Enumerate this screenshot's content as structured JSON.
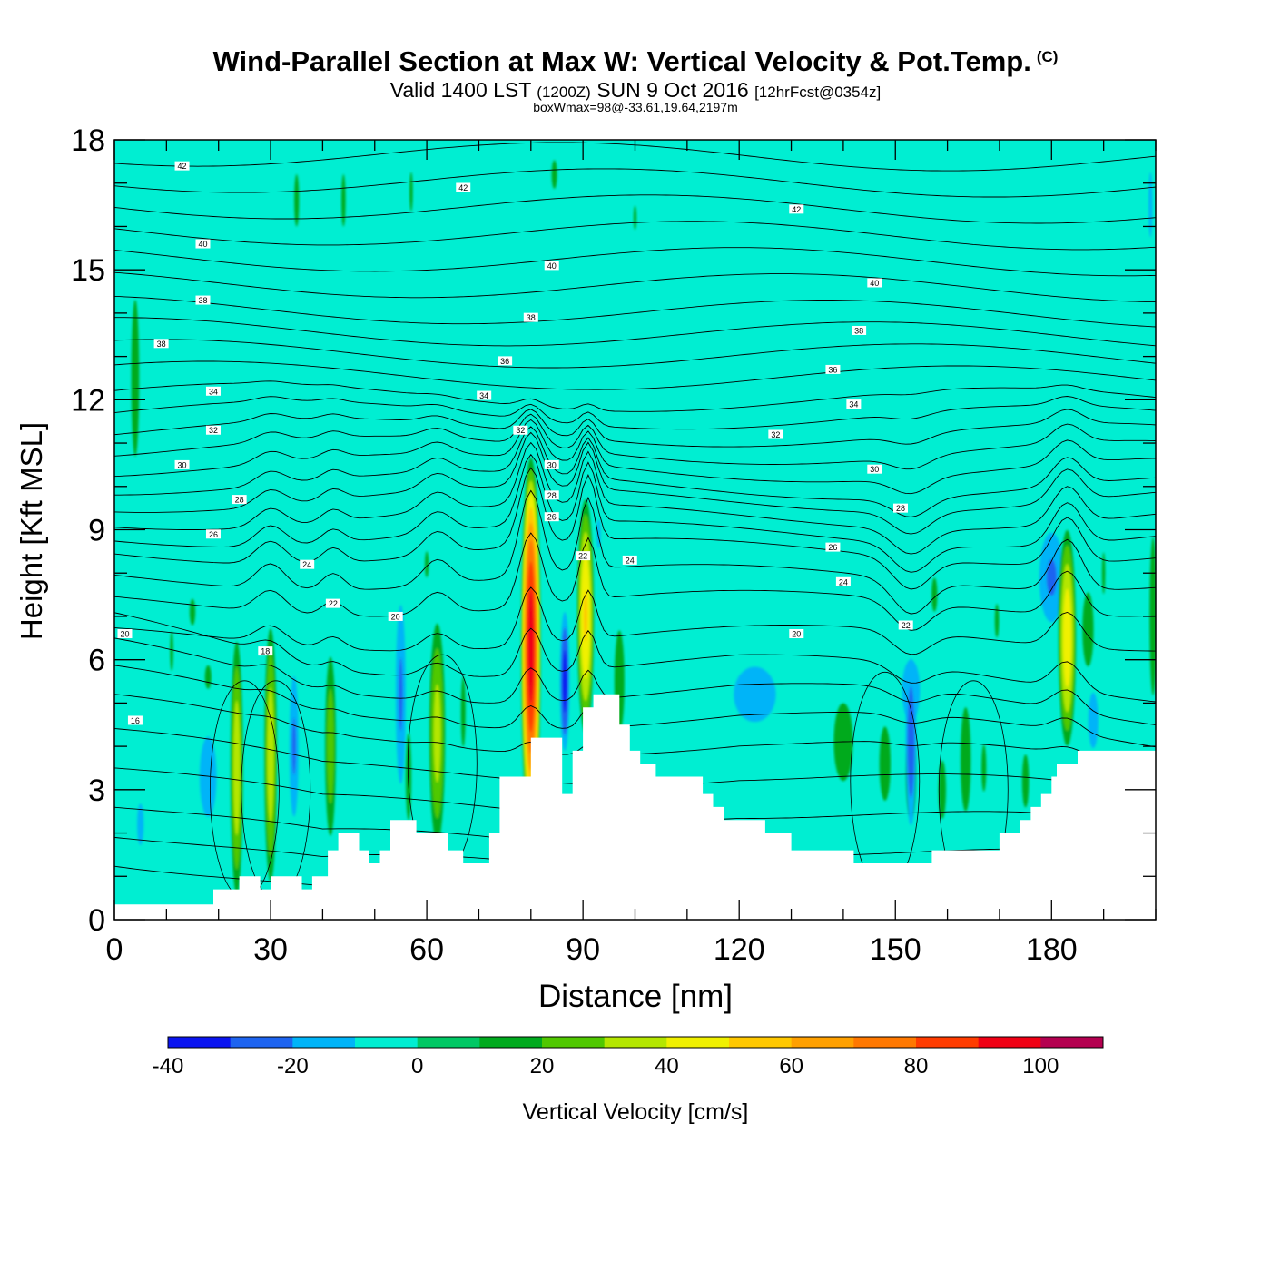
{
  "header": {
    "title": "Wind-Parallel Section at Max W: Vertical Velocity & Pot.Temp.",
    "copyright": "(C)",
    "valid_prefix": "Valid 1400 LST",
    "zulu": "(1200Z)",
    "valid_date": "SUN 9 Oct 2016",
    "forecast": "[12hrFcst@0354z]",
    "box_info": "boxWmax=98@-33.61,19.64,2197m"
  },
  "colors": {
    "background_field": "#00EED2",
    "terrain": "#FFFFFF",
    "contour": "#000000"
  },
  "chart_data": {
    "type": "heatmap",
    "title": "Wind-Parallel Section at Max W: Vertical Velocity & Pot.Temp.",
    "xlabel": "Distance [nm]",
    "ylabel": "Height [Kft MSL]",
    "xlim": [
      0,
      200
    ],
    "ylim": [
      0,
      18
    ],
    "xticks": [
      0,
      30,
      60,
      90,
      120,
      150,
      180
    ],
    "yticks": [
      0,
      3,
      6,
      9,
      12,
      15,
      18
    ],
    "colorbar": {
      "label": "Vertical Velocity [cm/s]",
      "bounds": [
        -40,
        -30,
        -20,
        -10,
        0,
        10,
        20,
        30,
        40,
        50,
        60,
        70,
        80,
        90,
        100,
        110
      ],
      "tick_values": [
        -40,
        -20,
        0,
        20,
        40,
        60,
        80,
        100
      ],
      "colors": [
        "#0A14F0",
        "#1E64F0",
        "#00B4F8",
        "#00EED2",
        "#00C864",
        "#00AA1E",
        "#50C800",
        "#B4E600",
        "#F0F000",
        "#FFC800",
        "#FFA000",
        "#FF7800",
        "#FF3C00",
        "#F00014",
        "#B40050"
      ]
    },
    "terrain_profile": [
      [
        0,
        0.35
      ],
      [
        19,
        0.35
      ],
      [
        19,
        0.7
      ],
      [
        24,
        0.7
      ],
      [
        24,
        1.0
      ],
      [
        28,
        1.0
      ],
      [
        28,
        0.7
      ],
      [
        30,
        0.7
      ],
      [
        30,
        1.0
      ],
      [
        36,
        1.0
      ],
      [
        36,
        0.7
      ],
      [
        38,
        0.7
      ],
      [
        38,
        1.0
      ],
      [
        41,
        1.0
      ],
      [
        41,
        1.6
      ],
      [
        43,
        1.6
      ],
      [
        43,
        2.0
      ],
      [
        47,
        2.0
      ],
      [
        47,
        1.6
      ],
      [
        49,
        1.6
      ],
      [
        49,
        1.3
      ],
      [
        51,
        1.3
      ],
      [
        51,
        1.6
      ],
      [
        53,
        1.6
      ],
      [
        53,
        2.3
      ],
      [
        58,
        2.3
      ],
      [
        58,
        2.0
      ],
      [
        64,
        2.0
      ],
      [
        64,
        1.6
      ],
      [
        67,
        1.6
      ],
      [
        67,
        1.3
      ],
      [
        72,
        1.3
      ],
      [
        72,
        2.0
      ],
      [
        74,
        2.0
      ],
      [
        74,
        3.3
      ],
      [
        80,
        3.3
      ],
      [
        80,
        4.2
      ],
      [
        86,
        4.2
      ],
      [
        86,
        2.9
      ],
      [
        88,
        2.9
      ],
      [
        88,
        3.9
      ],
      [
        90,
        3.9
      ],
      [
        90,
        4.9
      ],
      [
        92,
        4.9
      ],
      [
        92,
        5.2
      ],
      [
        97,
        5.2
      ],
      [
        97,
        4.5
      ],
      [
        99,
        4.5
      ],
      [
        99,
        3.9
      ],
      [
        101,
        3.9
      ],
      [
        101,
        3.6
      ],
      [
        104,
        3.6
      ],
      [
        104,
        3.3
      ],
      [
        113,
        3.3
      ],
      [
        113,
        2.9
      ],
      [
        115,
        2.9
      ],
      [
        115,
        2.6
      ],
      [
        117,
        2.6
      ],
      [
        117,
        2.3
      ],
      [
        125,
        2.3
      ],
      [
        125,
        2.0
      ],
      [
        130,
        2.0
      ],
      [
        130,
        1.6
      ],
      [
        142,
        1.6
      ],
      [
        142,
        1.3
      ],
      [
        157,
        1.3
      ],
      [
        157,
        1.6
      ],
      [
        170,
        1.6
      ],
      [
        170,
        2.0
      ],
      [
        174,
        2.0
      ],
      [
        174,
        2.3
      ],
      [
        176,
        2.3
      ],
      [
        176,
        2.6
      ],
      [
        178,
        2.6
      ],
      [
        178,
        2.9
      ],
      [
        180,
        2.9
      ],
      [
        180,
        3.3
      ],
      [
        181,
        3.3
      ],
      [
        181,
        3.6
      ],
      [
        185,
        3.6
      ],
      [
        185,
        3.9
      ],
      [
        200,
        3.9
      ]
    ],
    "blobs": [
      {
        "x": 80,
        "y": 6.3,
        "w": 2.0,
        "h": 4.6,
        "v": 98
      },
      {
        "x": 90.5,
        "y": 7.0,
        "w": 1.8,
        "h": 3.0,
        "v": 52
      },
      {
        "x": 183,
        "y": 6.5,
        "w": 1.9,
        "h": 2.8,
        "v": 48
      },
      {
        "x": 23.5,
        "y": 3.5,
        "w": 1.4,
        "h": 3.4,
        "v": 38
      },
      {
        "x": 30,
        "y": 3.8,
        "w": 1.4,
        "h": 3.4,
        "v": 38
      },
      {
        "x": 62,
        "y": 4.3,
        "w": 1.8,
        "h": 3.0,
        "v": 35
      },
      {
        "x": 41.5,
        "y": 4.0,
        "w": 1.3,
        "h": 2.6,
        "v": 27
      },
      {
        "x": 56.5,
        "y": 3.3,
        "w": 0.8,
        "h": 1.5,
        "v": 18
      },
      {
        "x": 67,
        "y": 4.8,
        "w": 0.9,
        "h": 1.7,
        "v": 13
      },
      {
        "x": 97,
        "y": 5.5,
        "w": 1.8,
        "h": 2.2,
        "v": 14
      },
      {
        "x": 106,
        "y": 4.6,
        "w": 3.0,
        "h": 1.6,
        "v": 10
      },
      {
        "x": 140,
        "y": 4.1,
        "w": 4.5,
        "h": 2.2,
        "v": 12
      },
      {
        "x": 148,
        "y": 3.6,
        "w": 2.0,
        "h": 1.6,
        "v": 14
      },
      {
        "x": 153,
        "y": 3.3,
        "w": 1.6,
        "h": 1.6,
        "v": 15
      },
      {
        "x": 159,
        "y": 3.0,
        "w": 1.5,
        "h": 1.4,
        "v": 13
      },
      {
        "x": 163.5,
        "y": 3.7,
        "w": 1.5,
        "h": 1.8,
        "v": 18
      },
      {
        "x": 167,
        "y": 3.5,
        "w": 1.5,
        "h": 1.8,
        "v": 11
      },
      {
        "x": 175,
        "y": 3.2,
        "w": 1.6,
        "h": 1.5,
        "v": 12
      },
      {
        "x": 187,
        "y": 6.7,
        "w": 2.0,
        "h": 1.6,
        "v": 14
      },
      {
        "x": 199.5,
        "y": 7.0,
        "w": 1.4,
        "h": 3.8,
        "v": 13
      },
      {
        "x": 4,
        "y": 12.5,
        "w": 2.5,
        "h": 6.0,
        "v": 11
      },
      {
        "x": 11,
        "y": 6.2,
        "w": 1.0,
        "h": 1.5,
        "v": 11
      },
      {
        "x": 35,
        "y": 16.6,
        "w": 1.5,
        "h": 2.0,
        "v": 11
      },
      {
        "x": 44,
        "y": 16.6,
        "w": 1.3,
        "h": 2.0,
        "v": 11
      },
      {
        "x": 57,
        "y": 16.8,
        "w": 1.0,
        "h": 1.5,
        "v": 11
      },
      {
        "x": 84.5,
        "y": 17.2,
        "w": 1.7,
        "h": 1.1,
        "v": 11
      },
      {
        "x": 60,
        "y": 8.2,
        "w": 1.2,
        "h": 1.0,
        "v": 11
      },
      {
        "x": 15,
        "y": 7.1,
        "w": 1.8,
        "h": 1.0,
        "v": 11
      },
      {
        "x": 18,
        "y": 5.6,
        "w": 2.0,
        "h": 0.9,
        "v": 11
      },
      {
        "x": 157.5,
        "y": 7.5,
        "w": 1.8,
        "h": 1.3,
        "v": 11
      },
      {
        "x": 169.5,
        "y": 6.9,
        "w": 1.3,
        "h": 1.3,
        "v": 11
      },
      {
        "x": 190,
        "y": 8.0,
        "w": 1.0,
        "h": 1.6,
        "v": 11
      },
      {
        "x": 100,
        "y": 16.2,
        "w": 0.9,
        "h": 0.9,
        "v": 11
      },
      {
        "x": 153,
        "y": 4.1,
        "w": 1.3,
        "h": 2.4,
        "v": -28
      },
      {
        "x": 86.5,
        "y": 5.5,
        "w": 1.1,
        "h": 1.9,
        "v": -35
      },
      {
        "x": 55,
        "y": 5.2,
        "w": 1.3,
        "h": 2.8,
        "v": -22
      },
      {
        "x": 34.5,
        "y": 4.0,
        "w": 1.2,
        "h": 2.2,
        "v": -22
      },
      {
        "x": 180,
        "y": 7.9,
        "w": 3.2,
        "h": 1.4,
        "v": -22
      },
      {
        "x": 18,
        "y": 3.3,
        "w": 2.8,
        "h": 1.6,
        "v": -15
      },
      {
        "x": 123,
        "y": 5.2,
        "w": 7.0,
        "h": 1.1,
        "v": -15
      },
      {
        "x": 153,
        "y": 5.3,
        "w": 3.0,
        "h": 1.2,
        "v": -15
      },
      {
        "x": 188,
        "y": 4.6,
        "w": 1.8,
        "h": 1.2,
        "v": -14
      },
      {
        "x": 199,
        "y": 16.5,
        "w": 0.7,
        "h": 1.4,
        "v": -14
      },
      {
        "x": 5,
        "y": 2.2,
        "w": 1.3,
        "h": 1.0,
        "v": -13
      },
      {
        "x": 93,
        "y": 8.9,
        "w": 0.8,
        "h": 0.7,
        "v": -13
      }
    ],
    "theta_contours": [
      {
        "level": 14,
        "base": 0.6
      },
      {
        "level": 15,
        "base": 1.2
      },
      {
        "level": 16,
        "base": 1.8
      },
      {
        "level": 17,
        "base": 2.6
      },
      {
        "level": 18,
        "base": 3.4
      },
      {
        "level": 19,
        "base": 4.1
      },
      {
        "level": 20,
        "base": 4.7
      },
      {
        "level": 21,
        "base": 5.3
      },
      {
        "level": 22,
        "base": 5.9
      },
      {
        "level": 23,
        "base": 6.5
      },
      {
        "level": 24,
        "base": 7.3
      },
      {
        "level": 25,
        "base": 7.9
      },
      {
        "level": 26,
        "base": 8.5
      },
      {
        "level": 27,
        "base": 8.9
      },
      {
        "level": 28,
        "base": 9.3
      },
      {
        "level": 29,
        "base": 9.7
      },
      {
        "level": 30,
        "base": 10.1
      },
      {
        "level": 31,
        "base": 10.5
      },
      {
        "level": 32,
        "base": 10.9
      },
      {
        "level": 33,
        "base": 11.3
      },
      {
        "level": 34,
        "base": 11.7
      },
      {
        "level": 35,
        "base": 12.1
      },
      {
        "level": 36,
        "base": 12.6
      },
      {
        "level": 37,
        "base": 13.1
      },
      {
        "level": 38,
        "base": 13.6
      },
      {
        "level": 39,
        "base": 14.1
      },
      {
        "level": 40,
        "base": 14.7
      },
      {
        "level": 41,
        "base": 15.3
      },
      {
        "level": 42,
        "base": 15.9
      },
      {
        "level": 43,
        "base": 16.5
      },
      {
        "level": 44,
        "base": 17.1
      },
      {
        "level": 45,
        "base": 17.7
      }
    ],
    "contour_labels": [
      {
        "text": "42",
        "x": 13,
        "y": 17.4
      },
      {
        "text": "42",
        "x": 67,
        "y": 16.9
      },
      {
        "text": "42",
        "x": 131,
        "y": 16.4
      },
      {
        "text": "40",
        "x": 17,
        "y": 15.6
      },
      {
        "text": "40",
        "x": 84,
        "y": 15.1
      },
      {
        "text": "40",
        "x": 146,
        "y": 14.7
      },
      {
        "text": "38",
        "x": 17,
        "y": 14.3
      },
      {
        "text": "38",
        "x": 80,
        "y": 13.9
      },
      {
        "text": "38",
        "x": 143,
        "y": 13.6
      },
      {
        "text": "38",
        "x": 9,
        "y": 13.3
      },
      {
        "text": "36",
        "x": 75,
        "y": 12.9
      },
      {
        "text": "36",
        "x": 138,
        "y": 12.7
      },
      {
        "text": "34",
        "x": 19,
        "y": 12.2
      },
      {
        "text": "34",
        "x": 71,
        "y": 12.1
      },
      {
        "text": "34",
        "x": 142,
        "y": 11.9
      },
      {
        "text": "32",
        "x": 19,
        "y": 11.3
      },
      {
        "text": "32",
        "x": 78,
        "y": 11.3
      },
      {
        "text": "32",
        "x": 127,
        "y": 11.2
      },
      {
        "text": "30",
        "x": 13,
        "y": 10.5
      },
      {
        "text": "30",
        "x": 84,
        "y": 10.5
      },
      {
        "text": "30",
        "x": 146,
        "y": 10.4
      },
      {
        "text": "28",
        "x": 24,
        "y": 9.7
      },
      {
        "text": "28",
        "x": 84,
        "y": 9.8
      },
      {
        "text": "28",
        "x": 151,
        "y": 9.5
      },
      {
        "text": "26",
        "x": 19,
        "y": 8.9
      },
      {
        "text": "26",
        "x": 84,
        "y": 9.3
      },
      {
        "text": "26",
        "x": 138,
        "y": 8.6
      },
      {
        "text": "24",
        "x": 37,
        "y": 8.2
      },
      {
        "text": "24",
        "x": 99,
        "y": 8.3
      },
      {
        "text": "24",
        "x": 140,
        "y": 7.8
      },
      {
        "text": "22",
        "x": 42,
        "y": 7.3
      },
      {
        "text": "22",
        "x": 90,
        "y": 8.4
      },
      {
        "text": "22",
        "x": 152,
        "y": 6.8
      },
      {
        "text": "20",
        "x": 54,
        "y": 7.0
      },
      {
        "text": "20",
        "x": 131,
        "y": 6.6
      },
      {
        "text": "20",
        "x": 2,
        "y": 6.6
      },
      {
        "text": "18",
        "x": 29,
        "y": 6.2
      },
      {
        "text": "16",
        "x": 4,
        "y": 4.6
      }
    ]
  }
}
